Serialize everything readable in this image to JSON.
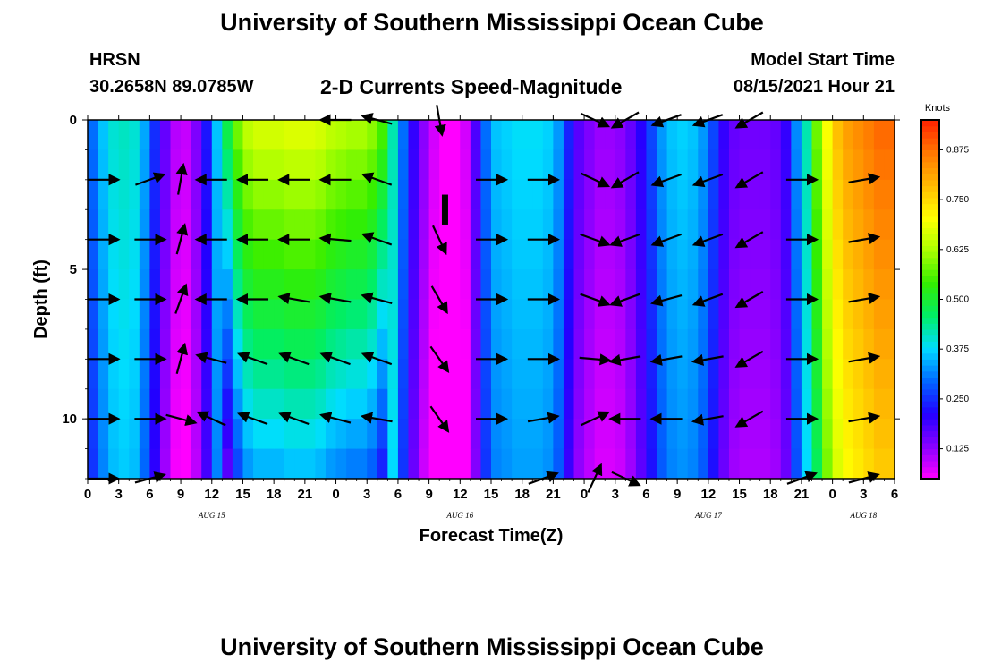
{
  "header": {
    "title": "University of Southern Mississippi Ocean Cube",
    "station": "HRSN",
    "coordinates": "30.2658N  89.0785W",
    "chart_title": "2-D Currents Speed-Magnitude",
    "model_start_label": "Model Start Time",
    "model_start_value": "08/15/2021 Hour 21"
  },
  "footer": {
    "title": "University of Southern Mississippi Ocean Cube"
  },
  "colorbar": {
    "label": "Knots",
    "ticks": [
      "0.125",
      "0.250",
      "0.375",
      "0.500",
      "0.625",
      "0.750",
      "0.875"
    ],
    "range": [
      0.05,
      0.95
    ],
    "colors": [
      "#ff00ff",
      "#8800ff",
      "#2200ff",
      "#0066ff",
      "#00ddff",
      "#00ee66",
      "#33ee00",
      "#aaff00",
      "#ffff00",
      "#ffbb00",
      "#ff7700",
      "#ff2200"
    ]
  },
  "chart_data": {
    "type": "heatmap",
    "title": "2-D Currents Speed-Magnitude",
    "xlabel": "Forecast Time(Z)",
    "ylabel": "Depth (ft)",
    "x_tick_labels": [
      "0",
      "3",
      "6",
      "9",
      "12",
      "15",
      "18",
      "21",
      "0",
      "3",
      "6",
      "9",
      "12",
      "15",
      "18",
      "21",
      "0",
      "3",
      "6",
      "9",
      "12",
      "15",
      "18",
      "21",
      "0",
      "3",
      "6"
    ],
    "date_labels": [
      {
        "label": "AUG 15",
        "hour": 12
      },
      {
        "label": "AUG 16",
        "hour": 36
      },
      {
        "label": "AUG 17",
        "hour": 60
      },
      {
        "label": "AUG 18",
        "hour": 75
      }
    ],
    "x_range_hours": [
      0,
      78
    ],
    "y_tick_labels": [
      "0",
      "5",
      "10"
    ],
    "ylim": [
      0,
      12
    ],
    "depth_ticks": [
      0,
      5,
      10
    ],
    "colorbar_label": "Knots",
    "speed_by_hour_surface": [
      [
        0,
        0.3
      ],
      [
        1,
        0.36
      ],
      [
        2,
        0.4
      ],
      [
        3,
        0.41
      ],
      [
        4,
        0.4
      ],
      [
        5,
        0.34
      ],
      [
        6,
        0.25
      ],
      [
        7,
        0.16
      ],
      [
        8,
        0.1
      ],
      [
        9,
        0.09
      ],
      [
        10,
        0.14
      ],
      [
        11,
        0.23
      ],
      [
        12,
        0.36
      ],
      [
        13,
        0.48
      ],
      [
        14,
        0.58
      ],
      [
        15,
        0.64
      ],
      [
        16,
        0.66
      ],
      [
        17,
        0.66
      ],
      [
        18,
        0.66
      ],
      [
        19,
        0.67
      ],
      [
        20,
        0.67
      ],
      [
        21,
        0.67
      ],
      [
        22,
        0.66
      ],
      [
        23,
        0.64
      ],
      [
        24,
        0.63
      ],
      [
        25,
        0.62
      ],
      [
        26,
        0.62
      ],
      [
        27,
        0.6
      ],
      [
        28,
        0.55
      ],
      [
        29,
        0.42
      ],
      [
        30,
        0.3
      ],
      [
        31,
        0.2
      ],
      [
        32,
        0.13
      ],
      [
        33,
        0.08
      ],
      [
        34,
        0.05
      ],
      [
        35,
        0.05
      ],
      [
        36,
        0.08
      ],
      [
        37,
        0.18
      ],
      [
        38,
        0.3
      ],
      [
        39,
        0.36
      ],
      [
        40,
        0.37
      ],
      [
        41,
        0.38
      ],
      [
        42,
        0.38
      ],
      [
        43,
        0.38
      ],
      [
        44,
        0.37
      ],
      [
        45,
        0.33
      ],
      [
        46,
        0.24
      ],
      [
        47,
        0.17
      ],
      [
        48,
        0.14
      ],
      [
        49,
        0.12
      ],
      [
        50,
        0.12
      ],
      [
        51,
        0.13
      ],
      [
        52,
        0.16
      ],
      [
        53,
        0.21
      ],
      [
        54,
        0.27
      ],
      [
        55,
        0.33
      ],
      [
        56,
        0.36
      ],
      [
        57,
        0.37
      ],
      [
        58,
        0.36
      ],
      [
        59,
        0.33
      ],
      [
        60,
        0.27
      ],
      [
        61,
        0.2
      ],
      [
        62,
        0.16
      ],
      [
        63,
        0.15
      ],
      [
        64,
        0.15
      ],
      [
        65,
        0.15
      ],
      [
        66,
        0.16
      ],
      [
        67,
        0.2
      ],
      [
        68,
        0.32
      ],
      [
        69,
        0.42
      ],
      [
        70,
        0.58
      ],
      [
        71,
        0.7
      ],
      [
        72,
        0.78
      ],
      [
        73,
        0.82
      ],
      [
        74,
        0.84
      ],
      [
        75,
        0.86
      ],
      [
        76,
        0.88
      ],
      [
        77,
        0.88
      ],
      [
        78,
        0.88
      ]
    ],
    "arrows": [
      {
        "hour": 1.5,
        "depth": 2,
        "angle": 0
      },
      {
        "hour": 1.5,
        "depth": 4,
        "angle": 0
      },
      {
        "hour": 1.5,
        "depth": 6,
        "angle": 0
      },
      {
        "hour": 1.5,
        "depth": 8,
        "angle": 0
      },
      {
        "hour": 1.5,
        "depth": 10,
        "angle": 0
      },
      {
        "hour": 1.5,
        "depth": 12,
        "angle": 0
      },
      {
        "hour": 6,
        "depth": 2,
        "angle": 20
      },
      {
        "hour": 6,
        "depth": 4,
        "angle": 0
      },
      {
        "hour": 6,
        "depth": 6,
        "angle": 0
      },
      {
        "hour": 6,
        "depth": 8,
        "angle": 0
      },
      {
        "hour": 6,
        "depth": 10,
        "angle": 0
      },
      {
        "hour": 6,
        "depth": 12,
        "angle": 15
      },
      {
        "hour": 9,
        "depth": 2,
        "angle": 80
      },
      {
        "hour": 9,
        "depth": 4,
        "angle": 75
      },
      {
        "hour": 9,
        "depth": 6,
        "angle": 70
      },
      {
        "hour": 9,
        "depth": 8,
        "angle": 75
      },
      {
        "hour": 9,
        "depth": 10,
        "angle": -15
      },
      {
        "hour": 12,
        "depth": 2,
        "angle": 180
      },
      {
        "hour": 12,
        "depth": 4,
        "angle": 180
      },
      {
        "hour": 12,
        "depth": 6,
        "angle": 180
      },
      {
        "hour": 12,
        "depth": 8,
        "angle": 165
      },
      {
        "hour": 12,
        "depth": 10,
        "angle": 155
      },
      {
        "hour": 16,
        "depth": 2,
        "angle": 180
      },
      {
        "hour": 16,
        "depth": 4,
        "angle": 180
      },
      {
        "hour": 16,
        "depth": 6,
        "angle": 180
      },
      {
        "hour": 16,
        "depth": 8,
        "angle": 160
      },
      {
        "hour": 16,
        "depth": 10,
        "angle": 160
      },
      {
        "hour": 20,
        "depth": 2,
        "angle": 180
      },
      {
        "hour": 20,
        "depth": 4,
        "angle": 180
      },
      {
        "hour": 20,
        "depth": 6,
        "angle": 170
      },
      {
        "hour": 20,
        "depth": 8,
        "angle": 160
      },
      {
        "hour": 20,
        "depth": 10,
        "angle": 160
      },
      {
        "hour": 24,
        "depth": 0,
        "angle": 180
      },
      {
        "hour": 24,
        "depth": 2,
        "angle": 180
      },
      {
        "hour": 24,
        "depth": 4,
        "angle": 175
      },
      {
        "hour": 24,
        "depth": 6,
        "angle": 170
      },
      {
        "hour": 24,
        "depth": 8,
        "angle": 160
      },
      {
        "hour": 24,
        "depth": 10,
        "angle": 165
      },
      {
        "hour": 28,
        "depth": 0,
        "angle": 165
      },
      {
        "hour": 28,
        "depth": 2,
        "angle": 160
      },
      {
        "hour": 28,
        "depth": 4,
        "angle": 160
      },
      {
        "hour": 28,
        "depth": 6,
        "angle": 165
      },
      {
        "hour": 28,
        "depth": 8,
        "angle": 160
      },
      {
        "hour": 28,
        "depth": 10,
        "angle": 170
      },
      {
        "hour": 34,
        "depth": 0,
        "angle": -80
      },
      {
        "hour": 34,
        "depth": 4,
        "angle": -65
      },
      {
        "hour": 34,
        "depth": 6,
        "angle": -60
      },
      {
        "hour": 34,
        "depth": 8,
        "angle": -55
      },
      {
        "hour": 34,
        "depth": 10,
        "angle": -55
      },
      {
        "hour": 39,
        "depth": 2,
        "angle": 0
      },
      {
        "hour": 39,
        "depth": 4,
        "angle": 0
      },
      {
        "hour": 39,
        "depth": 6,
        "angle": 0
      },
      {
        "hour": 39,
        "depth": 8,
        "angle": 0
      },
      {
        "hour": 39,
        "depth": 10,
        "angle": 0
      },
      {
        "hour": 44,
        "depth": 2,
        "angle": 0
      },
      {
        "hour": 44,
        "depth": 4,
        "angle": 0
      },
      {
        "hour": 44,
        "depth": 6,
        "angle": 0
      },
      {
        "hour": 44,
        "depth": 8,
        "angle": 0
      },
      {
        "hour": 44,
        "depth": 10,
        "angle": 10
      },
      {
        "hour": 44,
        "depth": 12,
        "angle": 20
      },
      {
        "hour": 49,
        "depth": 0,
        "angle": -25
      },
      {
        "hour": 49,
        "depth": 2,
        "angle": -25
      },
      {
        "hour": 49,
        "depth": 4,
        "angle": -20
      },
      {
        "hour": 49,
        "depth": 6,
        "angle": -20
      },
      {
        "hour": 49,
        "depth": 8,
        "angle": -5
      },
      {
        "hour": 49,
        "depth": 10,
        "angle": 25
      },
      {
        "hour": 49,
        "depth": 12,
        "angle": 65
      },
      {
        "hour": 52,
        "depth": 0,
        "angle": 210
      },
      {
        "hour": 52,
        "depth": 2,
        "angle": 210
      },
      {
        "hour": 52,
        "depth": 4,
        "angle": 200
      },
      {
        "hour": 52,
        "depth": 6,
        "angle": 200
      },
      {
        "hour": 52,
        "depth": 8,
        "angle": 190
      },
      {
        "hour": 52,
        "depth": 10,
        "angle": 180
      },
      {
        "hour": 52,
        "depth": 12,
        "angle": -25
      },
      {
        "hour": 56,
        "depth": 0,
        "angle": 200
      },
      {
        "hour": 56,
        "depth": 2,
        "angle": 200
      },
      {
        "hour": 56,
        "depth": 4,
        "angle": 200
      },
      {
        "hour": 56,
        "depth": 6,
        "angle": 195
      },
      {
        "hour": 56,
        "depth": 8,
        "angle": 190
      },
      {
        "hour": 56,
        "depth": 10,
        "angle": 180
      },
      {
        "hour": 60,
        "depth": 0,
        "angle": 200
      },
      {
        "hour": 60,
        "depth": 2,
        "angle": 200
      },
      {
        "hour": 60,
        "depth": 4,
        "angle": 200
      },
      {
        "hour": 60,
        "depth": 6,
        "angle": 200
      },
      {
        "hour": 60,
        "depth": 8,
        "angle": 190
      },
      {
        "hour": 60,
        "depth": 10,
        "angle": 190
      },
      {
        "hour": 64,
        "depth": 0,
        "angle": 210
      },
      {
        "hour": 64,
        "depth": 2,
        "angle": 210
      },
      {
        "hour": 64,
        "depth": 4,
        "angle": 210
      },
      {
        "hour": 64,
        "depth": 6,
        "angle": 210
      },
      {
        "hour": 64,
        "depth": 8,
        "angle": 210
      },
      {
        "hour": 64,
        "depth": 10,
        "angle": 210
      },
      {
        "hour": 69,
        "depth": 2,
        "angle": 0
      },
      {
        "hour": 69,
        "depth": 4,
        "angle": 0
      },
      {
        "hour": 69,
        "depth": 6,
        "angle": 0
      },
      {
        "hour": 69,
        "depth": 8,
        "angle": 0
      },
      {
        "hour": 69,
        "depth": 10,
        "angle": 0
      },
      {
        "hour": 69,
        "depth": 12,
        "angle": 20
      },
      {
        "hour": 75,
        "depth": 2,
        "angle": 10
      },
      {
        "hour": 75,
        "depth": 4,
        "angle": 10
      },
      {
        "hour": 75,
        "depth": 6,
        "angle": 10
      },
      {
        "hour": 75,
        "depth": 8,
        "angle": 10
      },
      {
        "hour": 75,
        "depth": 10,
        "angle": 10
      },
      {
        "hour": 75,
        "depth": 12,
        "angle": 15
      }
    ]
  }
}
